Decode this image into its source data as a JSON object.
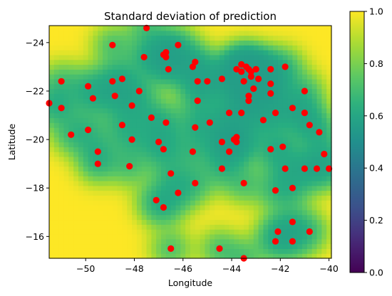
{
  "chart_data": {
    "type": "heatmap",
    "title": "Standard deviation of prediction",
    "xlabel": "Longitude",
    "ylabel": "Latitude",
    "xlim": [
      -51.5,
      -39.9
    ],
    "ylim": [
      -15.1,
      -24.7
    ],
    "y_axis_inverted": true,
    "xticks": [
      -50,
      -48,
      -46,
      -44,
      -42,
      -40
    ],
    "yticks": [
      -24,
      -22,
      -20,
      -18,
      -16
    ],
    "colormap": "viridis",
    "colorbar": {
      "range": [
        0.0,
        1.0
      ],
      "ticks": [
        "0.0",
        "0.2",
        "0.4",
        "0.6",
        "0.8",
        "1.0"
      ]
    },
    "heatmap_description": "std of prediction, low (~0.55-0.65) near observed points, rising to ~1.0 far from points",
    "points_color": "#ff0000",
    "points": [
      [
        -51.5,
        -21.5
      ],
      [
        -51.0,
        -22.4
      ],
      [
        -51.0,
        -21.3
      ],
      [
        -50.6,
        -20.2
      ],
      [
        -49.9,
        -20.4
      ],
      [
        -49.9,
        -22.2
      ],
      [
        -49.7,
        -21.7
      ],
      [
        -49.5,
        -19.5
      ],
      [
        -49.5,
        -19.0
      ],
      [
        -48.9,
        -23.9
      ],
      [
        -48.9,
        -22.4
      ],
      [
        -48.8,
        -21.8
      ],
      [
        -48.5,
        -22.5
      ],
      [
        -48.5,
        -20.6
      ],
      [
        -48.1,
        -21.4
      ],
      [
        -48.1,
        -20.0
      ],
      [
        -48.2,
        -18.9
      ],
      [
        -47.8,
        -22.0
      ],
      [
        -47.3,
        -20.9
      ],
      [
        -47.0,
        -19.9
      ],
      [
        -47.5,
        -24.6
      ],
      [
        -47.6,
        -23.4
      ],
      [
        -46.8,
        -23.5
      ],
      [
        -46.7,
        -23.6
      ],
      [
        -46.7,
        -23.4
      ],
      [
        -46.6,
        -22.9
      ],
      [
        -46.2,
        -23.9
      ],
      [
        -46.8,
        -19.6
      ],
      [
        -46.7,
        -20.7
      ],
      [
        -46.5,
        -18.6
      ],
      [
        -47.1,
        -17.5
      ],
      [
        -46.8,
        -17.2
      ],
      [
        -46.2,
        -17.8
      ],
      [
        -46.5,
        -15.5
      ],
      [
        -45.6,
        -23.0
      ],
      [
        -45.5,
        -23.2
      ],
      [
        -45.6,
        -19.5
      ],
      [
        -45.5,
        -20.5
      ],
      [
        -45.4,
        -21.6
      ],
      [
        -45.4,
        -22.4
      ],
      [
        -45.0,
        -22.4
      ],
      [
        -44.9,
        -20.7
      ],
      [
        -45.5,
        -18.2
      ],
      [
        -44.4,
        -22.5
      ],
      [
        -44.4,
        -19.9
      ],
      [
        -44.4,
        -18.8
      ],
      [
        -44.1,
        -21.1
      ],
      [
        -44.1,
        -19.5
      ],
      [
        -43.9,
        -20.0
      ],
      [
        -43.8,
        -20.1
      ],
      [
        -43.8,
        -19.9
      ],
      [
        -43.8,
        -22.9
      ],
      [
        -43.6,
        -23.1
      ],
      [
        -43.6,
        -22.8
      ],
      [
        -43.5,
        -22.4
      ],
      [
        -43.6,
        -21.1
      ],
      [
        -43.5,
        -18.2
      ],
      [
        -43.4,
        -23.0
      ],
      [
        -43.3,
        -22.9
      ],
      [
        -43.3,
        -21.8
      ],
      [
        -43.3,
        -21.6
      ],
      [
        -43.2,
        -22.8
      ],
      [
        -43.2,
        -22.6
      ],
      [
        -43.1,
        -22.1
      ],
      [
        -43.0,
        -22.9
      ],
      [
        -42.9,
        -22.5
      ],
      [
        -42.7,
        -20.8
      ],
      [
        -42.4,
        -21.9
      ],
      [
        -42.4,
        -22.3
      ],
      [
        -42.4,
        -22.9
      ],
      [
        -42.4,
        -19.6
      ],
      [
        -42.2,
        -21.1
      ],
      [
        -42.2,
        -17.9
      ],
      [
        -41.9,
        -19.7
      ],
      [
        -41.8,
        -18.8
      ],
      [
        -41.8,
        -23.0
      ],
      [
        -42.1,
        -16.2
      ],
      [
        -42.2,
        -15.8
      ],
      [
        -41.5,
        -21.3
      ],
      [
        -41.5,
        -18.0
      ],
      [
        -41.0,
        -22.0
      ],
      [
        -41.0,
        -21.1
      ],
      [
        -41.0,
        -18.8
      ],
      [
        -41.5,
        -16.6
      ],
      [
        -41.5,
        -15.8
      ],
      [
        -40.8,
        -20.6
      ],
      [
        -40.8,
        -16.2
      ],
      [
        -40.5,
        -18.8
      ],
      [
        -40.4,
        -20.3
      ],
      [
        -40.2,
        -19.4
      ],
      [
        -40.0,
        -18.8
      ],
      [
        -43.5,
        -15.1
      ],
      [
        -44.5,
        -15.5
      ]
    ]
  }
}
